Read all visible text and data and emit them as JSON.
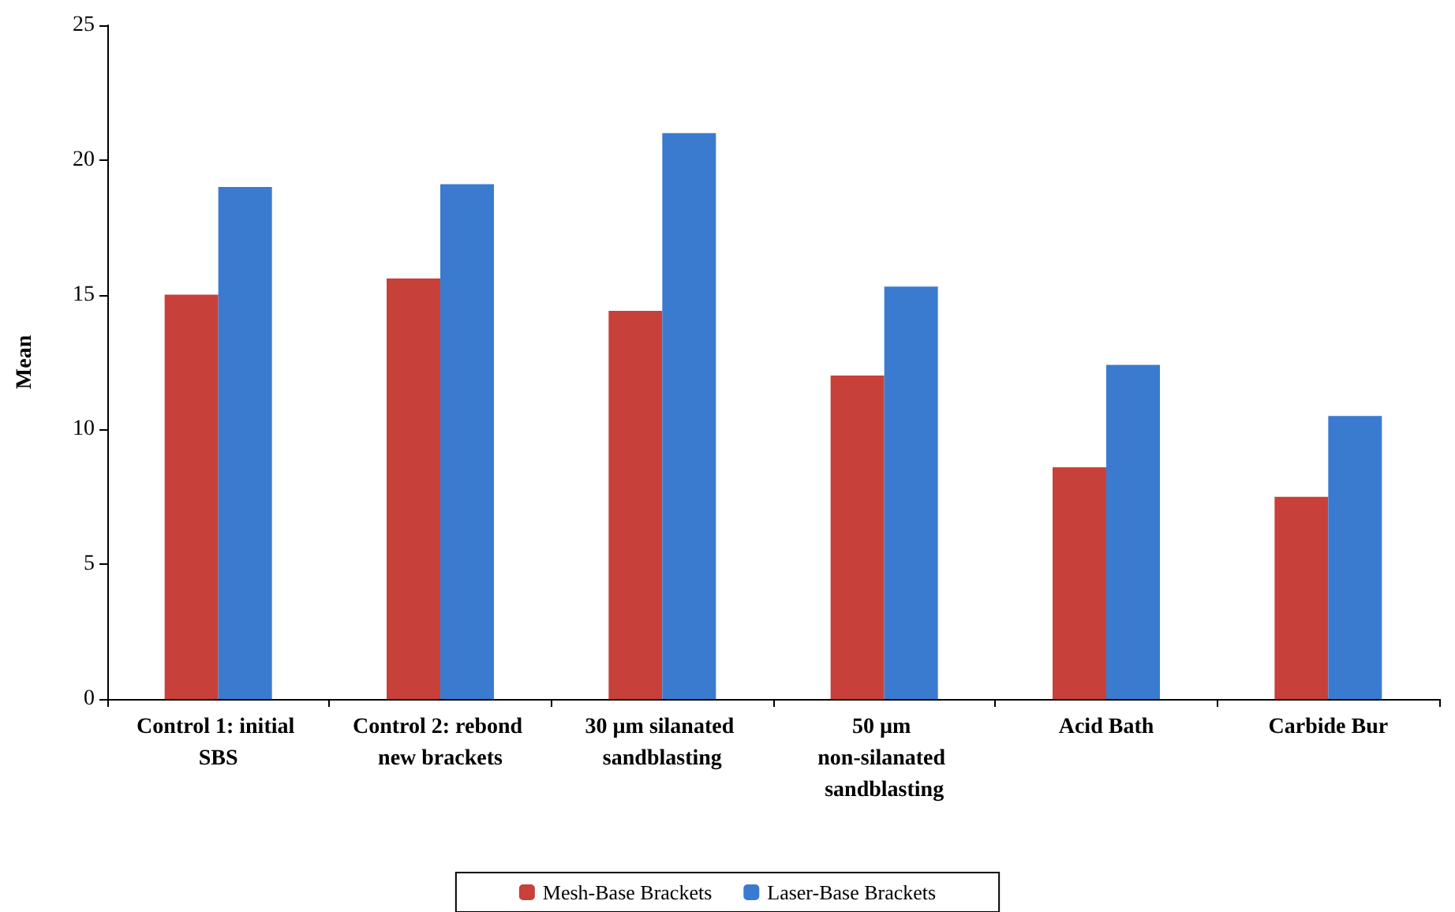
{
  "chart_data": {
    "type": "bar",
    "ylabel": "Mean",
    "categories": [
      "Control 1: initial SBS",
      "Control 2: rebond new brackets",
      "30 µm silanated sandblasting",
      "50 µm non-silanated sandblasting",
      "Acid Bath",
      "Carbide Bur"
    ],
    "series": [
      {
        "name": "Mesh-Base Brackets",
        "color": "#c8403a",
        "values": [
          15.0,
          15.6,
          14.4,
          12.0,
          8.6,
          7.5
        ]
      },
      {
        "name": "Laser-Base Brackets",
        "color": "#3a7bd0",
        "values": [
          19.0,
          19.1,
          21.0,
          15.3,
          12.4,
          10.5
        ]
      }
    ],
    "ylim": [
      0,
      25
    ],
    "yticks": [
      0,
      5,
      10,
      15,
      20,
      25
    ],
    "grid": false,
    "legend": "bottom"
  }
}
